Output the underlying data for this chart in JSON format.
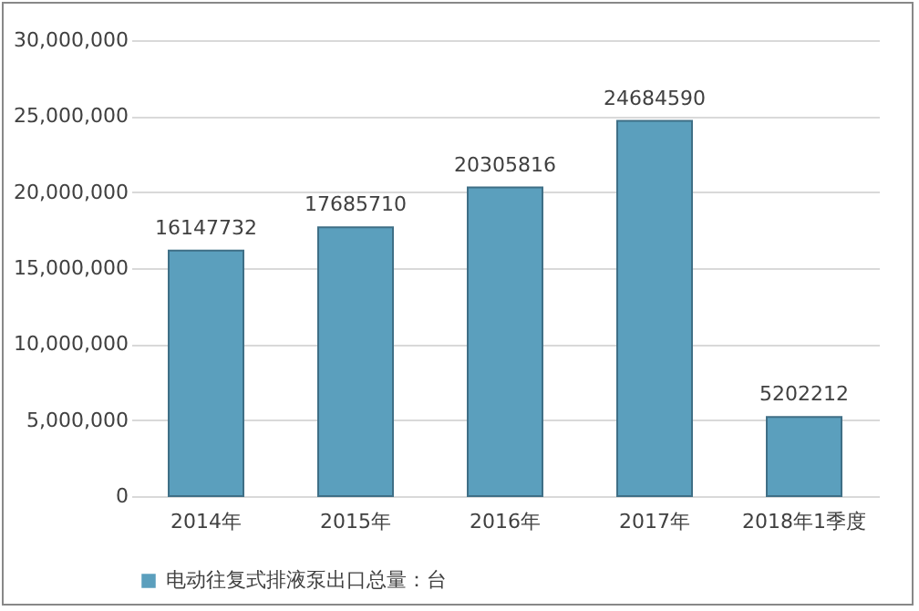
{
  "chart_data": {
    "type": "bar",
    "categories": [
      "2014年",
      "2015年",
      "2016年",
      "2017年",
      "2018年1季度"
    ],
    "series": [
      {
        "name": "电动往复式排液泵出口总量：台",
        "color": "#5b9fbd",
        "values": [
          16147732,
          17685710,
          20305816,
          24684590,
          5202212
        ]
      }
    ],
    "ylim": [
      0,
      30000000
    ],
    "yticks": [
      0,
      {
        "value": 5000000,
        "label": "5,000,000"
      },
      {
        "value": 10000000,
        "label": "10,000,000"
      },
      {
        "value": 15000000,
        "label": "15,000,000"
      },
      {
        "value": 20000000,
        "label": "20,000,000"
      },
      {
        "value": 25000000,
        "label": "25,000,000"
      },
      {
        "value": 30000000,
        "label": "30,000,000"
      }
    ],
    "grid": "y",
    "legend": "bottom",
    "data_labels": true
  }
}
